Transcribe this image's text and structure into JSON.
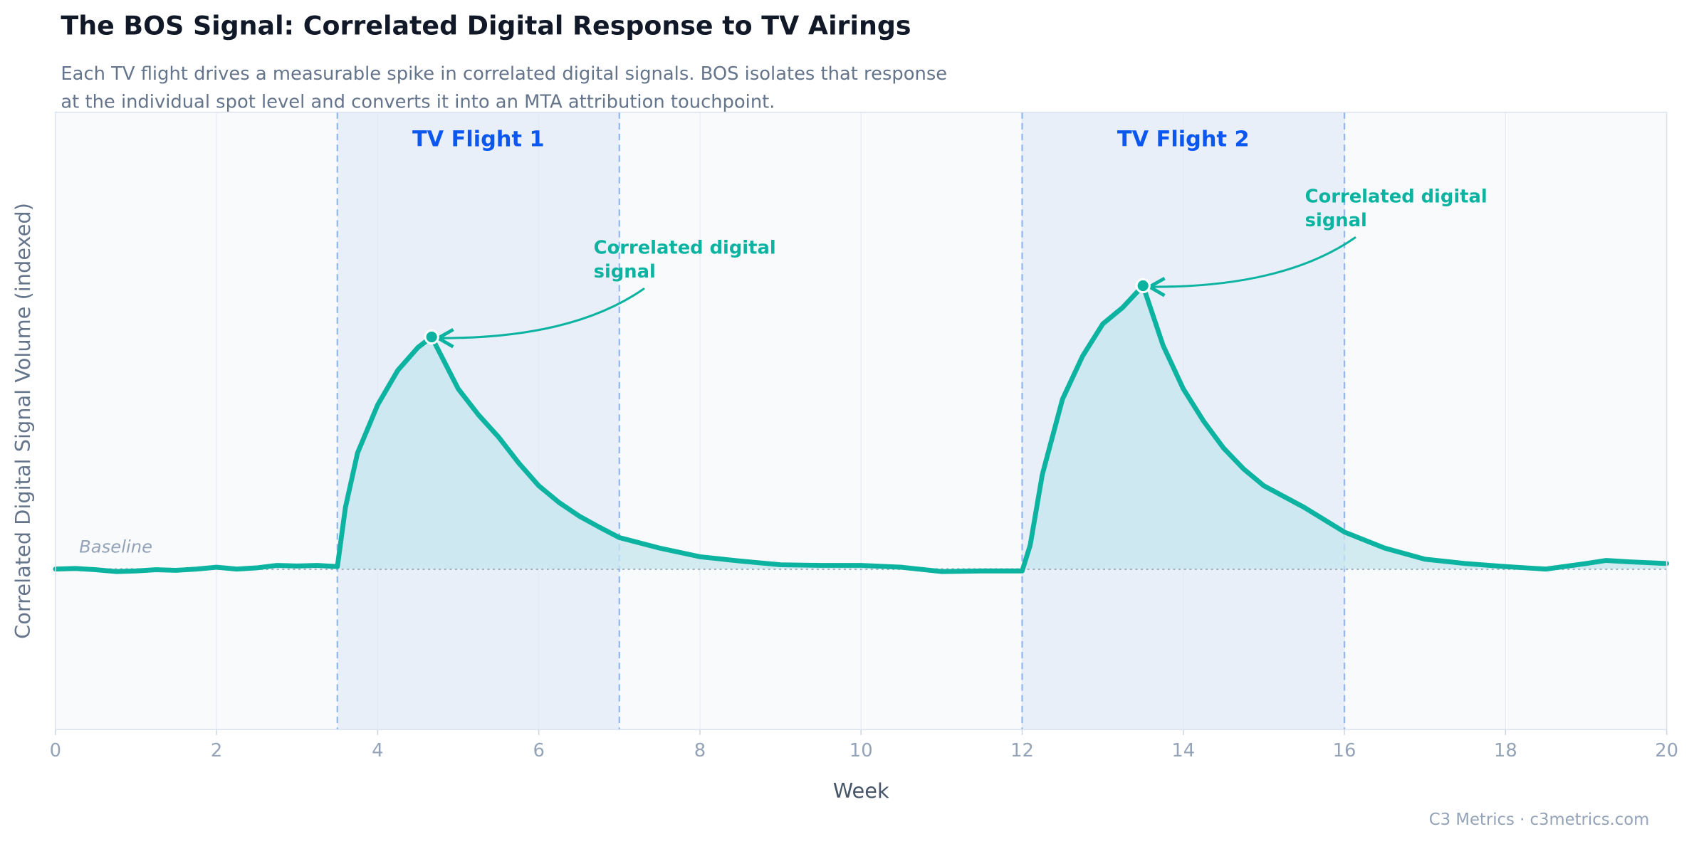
{
  "chart_data": {
    "type": "line",
    "title": "The BOS Signal: Correlated Digital Response to TV Airings",
    "subtitle": [
      "Each TV flight drives a measurable spike in correlated digital signals. BOS isolates that response",
      "at the individual spot level and converts it into an MTA attribution touchpoint."
    ],
    "x_label": "Week",
    "y_label": "Correlated Digital Signal Volume  (indexed)",
    "footer": "C3 Metrics  ·  c3metrics.com",
    "x": [
      0,
      0.25,
      0.5,
      0.75,
      1,
      1.25,
      1.5,
      1.75,
      2,
      2.25,
      2.5,
      2.75,
      3,
      3.25,
      3.5,
      3.6,
      3.75,
      4,
      4.25,
      4.5,
      4.67,
      5,
      5.25,
      5.5,
      5.75,
      6,
      6.25,
      6.5,
      6.75,
      7,
      7.5,
      8,
      8.5,
      9,
      9.5,
      10,
      10.5,
      11,
      11.5,
      12,
      12.1,
      12.25,
      12.5,
      12.75,
      13,
      13.25,
      13.5,
      13.75,
      14,
      14.25,
      14.5,
      14.75,
      15,
      15.5,
      16,
      16.5,
      17,
      17.5,
      18,
      18.5,
      19,
      19.25,
      19.5,
      20
    ],
    "series": [
      {
        "color": "#0bb3a0",
        "values": [
          26,
          26.1,
          25.9,
          25.6,
          25.7,
          25.9,
          25.8,
          26,
          26.3,
          26,
          26.2,
          26.6,
          26.5,
          26.6,
          26.4,
          36,
          44.8,
          52.6,
          58.2,
          61.9,
          63.6,
          55.2,
          51,
          47.4,
          43.2,
          39.5,
          36.8,
          34.6,
          32.8,
          31.1,
          29.4,
          28,
          27.3,
          26.7,
          26.6,
          26.6,
          26.3,
          25.6,
          25.7,
          25.7,
          29.9,
          41.3,
          53.5,
          60.5,
          65.7,
          68.4,
          71.9,
          62.2,
          55.2,
          50,
          45.6,
          42.2,
          39.5,
          36,
          32,
          29.4,
          27.6,
          26.9,
          26.4,
          26,
          26.9,
          27.4,
          27.2,
          26.9
        ]
      }
    ],
    "xlim": [
      0,
      20
    ],
    "xticks": [
      0,
      2,
      4,
      6,
      8,
      10,
      12,
      14,
      16,
      18,
      20
    ],
    "ylim": [
      0,
      100
    ],
    "grid": true,
    "baseline": {
      "label": "Baseline",
      "value": 26
    },
    "flights": [
      {
        "label": "TV Flight 1",
        "start": 3.5,
        "end": 7
      },
      {
        "label": "TV Flight 2",
        "start": 12,
        "end": 16
      }
    ],
    "annotations": [
      {
        "lines": [
          "Correlated digital",
          "signal"
        ],
        "x": 4.67,
        "y": 63.6
      },
      {
        "lines": [
          "Correlated digital",
          "signal"
        ],
        "x": 13.5,
        "y": 71.9
      }
    ]
  }
}
